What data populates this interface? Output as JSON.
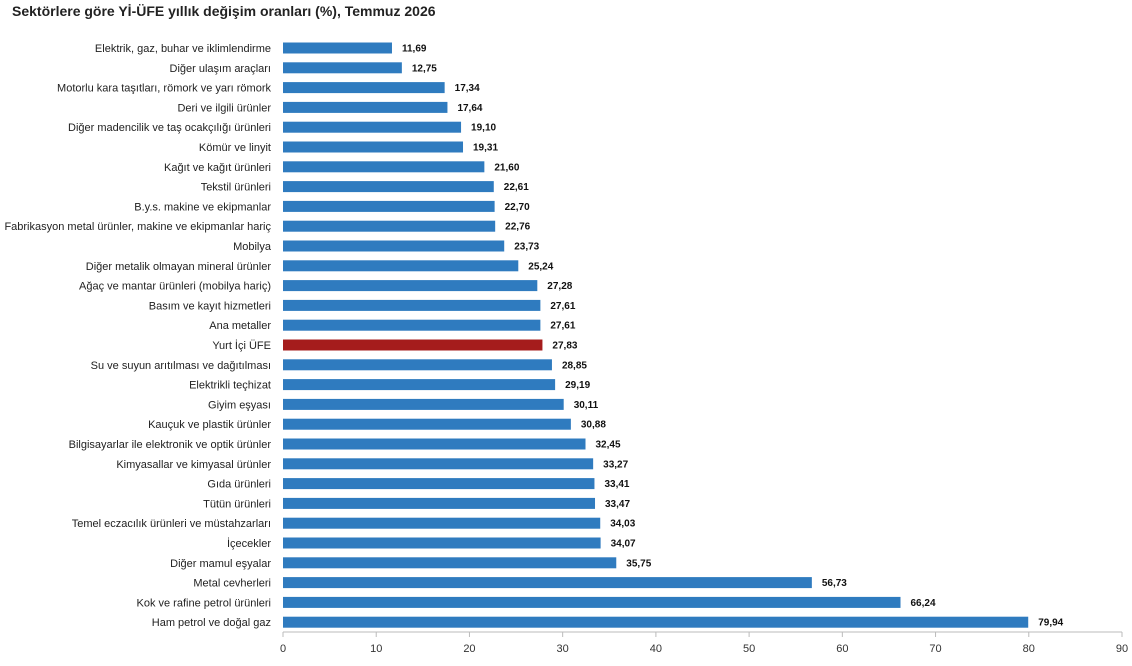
{
  "chart_data": {
    "type": "bar",
    "orientation": "horizontal",
    "title": "Sektörlere göre Yİ-ÜFE yıllık değişim oranları (%), Temmuz 2026",
    "xlim": [
      0,
      90
    ],
    "x_ticks": [
      0,
      10,
      20,
      30,
      40,
      50,
      60,
      70,
      80,
      90
    ],
    "tick_labels": [
      "0",
      "10",
      "20",
      "30",
      "40",
      "50",
      "60",
      "70",
      "80",
      "90"
    ],
    "grid": false,
    "colors": {
      "bar": "#2f7bbf",
      "highlight": "#a51c1c",
      "axis": "#bbbbbb"
    },
    "highlight_category": "Yurt İçi ÜFE",
    "categories": [
      "Elektrik, gaz, buhar ve iklimlendirme",
      "Diğer ulaşım araçları",
      "Motorlu kara taşıtları, römork ve yarı römork",
      "Deri ve ilgili ürünler",
      "Diğer madencilik ve taş ocakçılığı ürünleri",
      "Kömür ve linyit",
      "Kağıt ve kağıt ürünleri",
      "Tekstil ürünleri",
      "B.y.s. makine ve ekipmanlar",
      "Fabrikasyon metal ürünler, makine ve ekipmanlar hariç",
      "Mobilya",
      "Diğer metalik olmayan mineral ürünler",
      "Ağaç ve mantar ürünleri (mobilya hariç)",
      "Basım ve kayıt hizmetleri",
      "Ana metaller",
      "Yurt İçi ÜFE",
      "Su ve suyun arıtılması ve dağıtılması",
      "Elektrikli teçhizat",
      "Giyim eşyası",
      "Kauçuk ve plastik ürünler",
      "Bilgisayarlar ile elektronik ve optik ürünler",
      "Kimyasallar ve kimyasal ürünler",
      "Gıda ürünleri",
      "Tütün ürünleri",
      "Temel eczacılık ürünleri ve müstahzarları",
      "İçecekler",
      "Diğer mamul eşyalar",
      "Metal cevherleri",
      "Kok ve rafine petrol ürünleri",
      "Ham petrol ve doğal gaz"
    ],
    "values": [
      11.69,
      12.75,
      17.34,
      17.64,
      19.1,
      19.31,
      21.6,
      22.61,
      22.7,
      22.76,
      23.73,
      25.24,
      27.28,
      27.61,
      27.61,
      27.83,
      28.85,
      29.19,
      30.11,
      30.88,
      32.45,
      33.27,
      33.41,
      33.47,
      34.03,
      34.07,
      35.75,
      56.73,
      66.24,
      79.94
    ],
    "value_labels": [
      "11,69",
      "12,75",
      "17,34",
      "17,64",
      "19,10",
      "19,31",
      "21,60",
      "22,61",
      "22,70",
      "22,76",
      "23,73",
      "25,24",
      "27,28",
      "27,61",
      "27,61",
      "27,83",
      "28,85",
      "29,19",
      "30,11",
      "30,88",
      "32,45",
      "33,27",
      "33,41",
      "33,47",
      "34,03",
      "34,07",
      "35,75",
      "56,73",
      "66,24",
      "79,94"
    ]
  }
}
